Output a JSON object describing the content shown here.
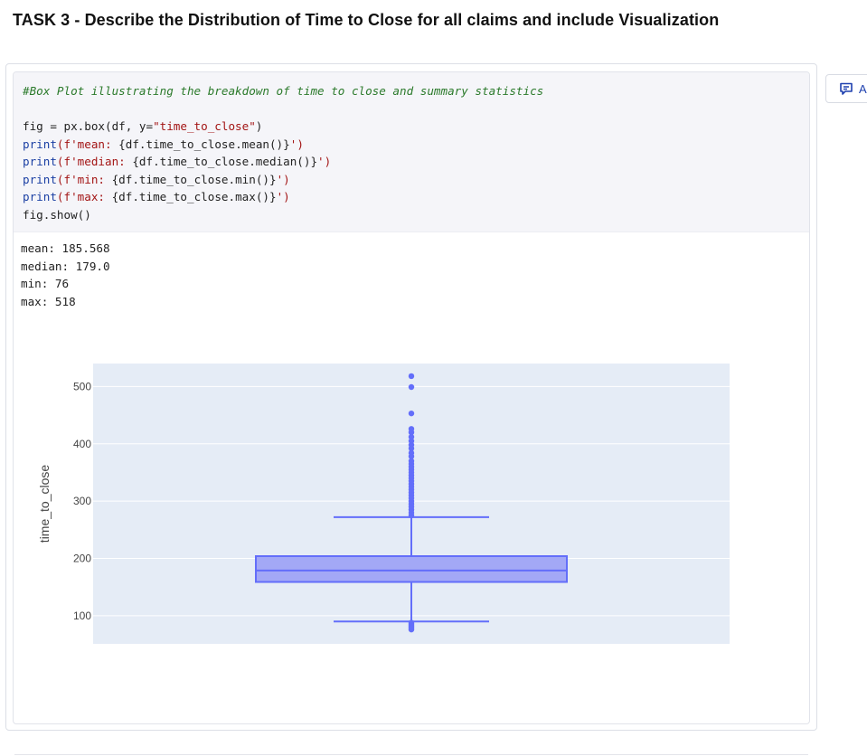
{
  "task": {
    "title": "TASK 3 - Describe the Distribution of Time to Close for all claims and include Visualization"
  },
  "code": {
    "comment": "#Box Plot illustrating the breakdown of time to close and summary statistics",
    "lines": [
      [
        {
          "t": "fig = px.box(df, y="
        },
        {
          "t": "\"time_to_close\"",
          "c": "str"
        },
        {
          "t": ")"
        }
      ],
      [
        {
          "t": "print",
          "c": "kw"
        },
        {
          "t": "(f'mean: ",
          "c": "str"
        },
        {
          "t": "{df.time_to_close.mean()}"
        },
        {
          "t": "')",
          "c": "str"
        }
      ],
      [
        {
          "t": "print",
          "c": "kw"
        },
        {
          "t": "(f'median: ",
          "c": "str"
        },
        {
          "t": "{df.time_to_close.median()}"
        },
        {
          "t": "')",
          "c": "str"
        }
      ],
      [
        {
          "t": "print",
          "c": "kw"
        },
        {
          "t": "(f'min: ",
          "c": "str"
        },
        {
          "t": "{df.time_to_close.min()}"
        },
        {
          "t": "')",
          "c": "str"
        }
      ],
      [
        {
          "t": "print",
          "c": "kw"
        },
        {
          "t": "(f'max: ",
          "c": "str"
        },
        {
          "t": "{df.time_to_close.max()}"
        },
        {
          "t": "')",
          "c": "str"
        }
      ],
      [
        {
          "t": "fig.show()"
        }
      ]
    ]
  },
  "output": {
    "lines": [
      "mean: 185.568",
      "median: 179.0",
      "min: 76",
      "max: 518"
    ]
  },
  "side_button": {
    "icon": "comment-icon",
    "label": "A"
  },
  "colors": {
    "box_line": "#636efa",
    "box_fill": "#a3a8f6",
    "plot_bg": "#e5ecf6",
    "grid": "#ffffff"
  },
  "chart_data": {
    "type": "box",
    "ylabel": "time_to_close",
    "xlabel": "",
    "ylim": [
      51,
      540
    ],
    "yticks": [
      100,
      200,
      300,
      400,
      500
    ],
    "grid": true,
    "box": {
      "min": 76,
      "lower_fence": 90,
      "q1": 159,
      "median": 179,
      "q3": 204,
      "upper_fence": 272,
      "max": 518
    },
    "outliers": [
      76,
      78,
      80,
      82,
      84,
      86,
      88,
      275,
      280,
      285,
      290,
      295,
      300,
      305,
      310,
      315,
      320,
      325,
      330,
      335,
      340,
      345,
      350,
      355,
      360,
      365,
      370,
      378,
      384,
      392,
      398,
      405,
      412,
      420,
      426,
      453,
      499,
      518
    ]
  }
}
